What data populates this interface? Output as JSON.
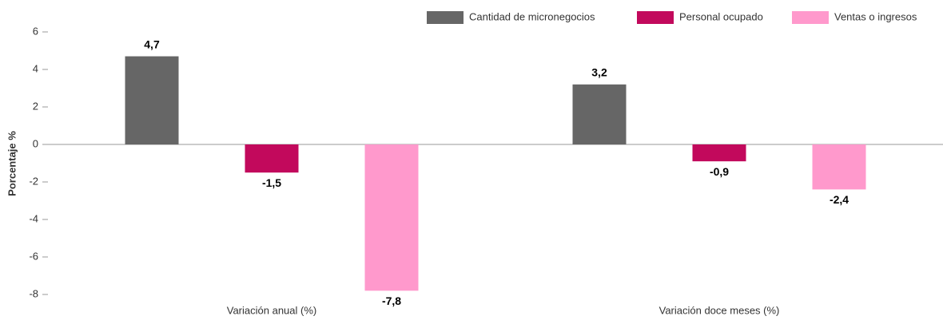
{
  "chart_data": {
    "type": "bar",
    "y_label": "Porcentaje %",
    "categories": [
      "Variación anual (%)",
      "Variación doce meses (%)"
    ],
    "series": [
      {
        "name": "Cantidad de micronegocios",
        "color": "#666666",
        "values": [
          4.7,
          3.2
        ],
        "value_labels": [
          "4,7",
          "3,2"
        ]
      },
      {
        "name": "Personal ocupado",
        "color": "#c2095c",
        "values": [
          -1.5,
          -0.9
        ],
        "value_labels": [
          "-1,5",
          "-0,9"
        ]
      },
      {
        "name": "Ventas o ingresos",
        "color": "#ff99cc",
        "values": [
          -7.8,
          -2.4
        ],
        "value_labels": [
          "-7,8",
          "-2,4"
        ]
      }
    ],
    "ylim": [
      -8,
      6
    ],
    "yticks": [
      -8,
      -6,
      -4,
      -2,
      0,
      2,
      4,
      6
    ],
    "legend": "top-right"
  }
}
